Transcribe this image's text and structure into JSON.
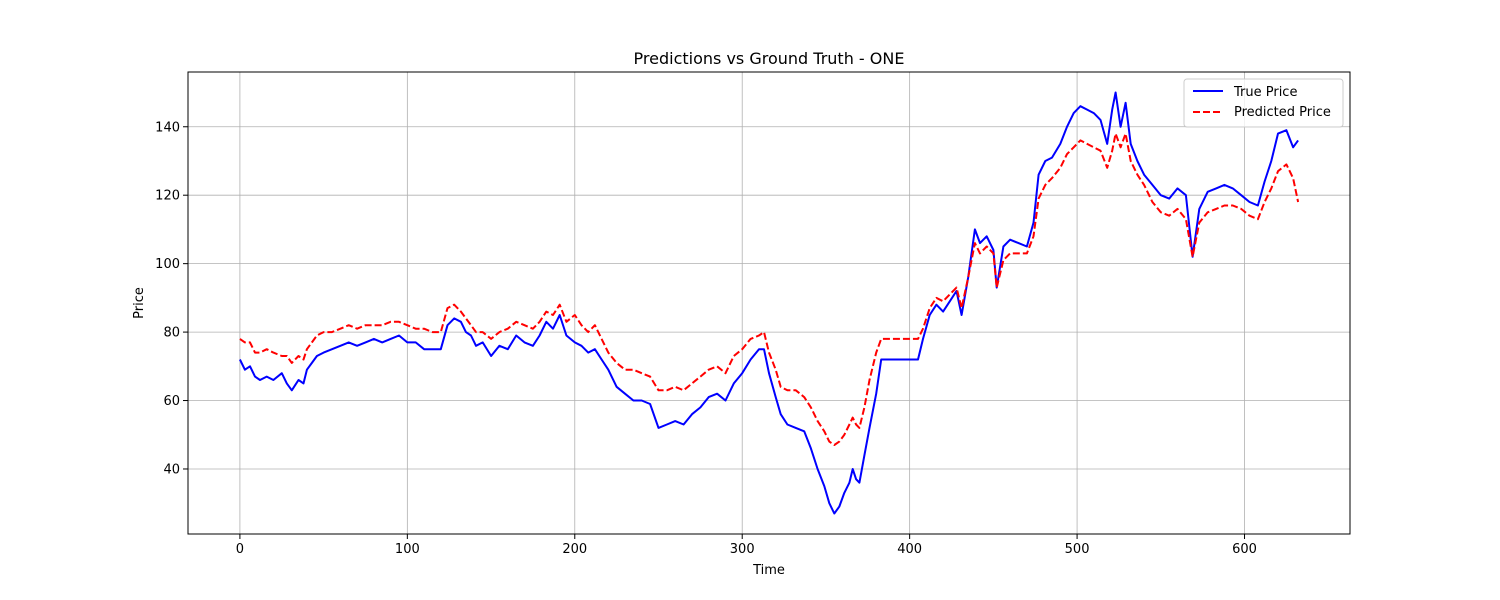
{
  "chart_data": {
    "type": "line",
    "title": "Predictions vs Ground Truth - ONE",
    "xlabel": "Time",
    "ylabel": "Price",
    "xlim": [
      -31,
      663
    ],
    "ylim": [
      21,
      156
    ],
    "xticks": [
      0,
      100,
      200,
      300,
      400,
      500,
      600
    ],
    "yticks": [
      40,
      60,
      80,
      100,
      120,
      140
    ],
    "grid": true,
    "legend_position": "top-right",
    "series": [
      {
        "name": "True Price",
        "color": "#0000ff",
        "style": "solid",
        "points": [
          [
            0,
            72
          ],
          [
            3,
            69
          ],
          [
            6,
            70
          ],
          [
            9,
            67
          ],
          [
            12,
            66
          ],
          [
            16,
            67
          ],
          [
            20,
            66
          ],
          [
            25,
            68
          ],
          [
            28,
            65
          ],
          [
            31,
            63
          ],
          [
            35,
            66
          ],
          [
            38,
            65
          ],
          [
            40,
            69
          ],
          [
            43,
            71
          ],
          [
            46,
            73
          ],
          [
            50,
            74
          ],
          [
            55,
            75
          ],
          [
            60,
            76
          ],
          [
            65,
            77
          ],
          [
            70,
            76
          ],
          [
            75,
            77
          ],
          [
            80,
            78
          ],
          [
            85,
            77
          ],
          [
            90,
            78
          ],
          [
            95,
            79
          ],
          [
            100,
            77
          ],
          [
            105,
            77
          ],
          [
            110,
            75
          ],
          [
            115,
            75
          ],
          [
            120,
            75
          ],
          [
            124,
            82
          ],
          [
            128,
            84
          ],
          [
            132,
            83
          ],
          [
            135,
            80
          ],
          [
            138,
            79
          ],
          [
            141,
            76
          ],
          [
            145,
            77
          ],
          [
            150,
            73
          ],
          [
            155,
            76
          ],
          [
            160,
            75
          ],
          [
            165,
            79
          ],
          [
            170,
            77
          ],
          [
            175,
            76
          ],
          [
            179,
            79
          ],
          [
            183,
            83
          ],
          [
            187,
            81
          ],
          [
            191,
            85
          ],
          [
            195,
            79
          ],
          [
            200,
            77
          ],
          [
            204,
            76
          ],
          [
            208,
            74
          ],
          [
            212,
            75
          ],
          [
            216,
            72
          ],
          [
            220,
            69
          ],
          [
            225,
            64
          ],
          [
            230,
            62
          ],
          [
            235,
            60
          ],
          [
            240,
            60
          ],
          [
            245,
            59
          ],
          [
            250,
            52
          ],
          [
            255,
            53
          ],
          [
            260,
            54
          ],
          [
            265,
            53
          ],
          [
            270,
            56
          ],
          [
            275,
            58
          ],
          [
            280,
            61
          ],
          [
            285,
            62
          ],
          [
            290,
            60
          ],
          [
            295,
            65
          ],
          [
            300,
            68
          ],
          [
            305,
            72
          ],
          [
            310,
            75
          ],
          [
            313,
            75
          ],
          [
            316,
            68
          ],
          [
            320,
            61
          ],
          [
            323,
            56
          ],
          [
            327,
            53
          ],
          [
            332,
            52
          ],
          [
            337,
            51
          ],
          [
            341,
            46
          ],
          [
            345,
            40
          ],
          [
            349,
            35
          ],
          [
            352,
            30
          ],
          [
            355,
            27
          ],
          [
            358,
            29
          ],
          [
            361,
            33
          ],
          [
            364,
            36
          ],
          [
            366,
            40
          ],
          [
            368,
            37
          ],
          [
            370,
            36
          ],
          [
            373,
            44
          ],
          [
            376,
            52
          ],
          [
            380,
            62
          ],
          [
            383,
            72
          ],
          [
            390,
            72
          ],
          [
            400,
            72
          ],
          [
            405,
            72
          ],
          [
            408,
            78
          ],
          [
            412,
            85
          ],
          [
            416,
            88
          ],
          [
            420,
            86
          ],
          [
            424,
            89
          ],
          [
            428,
            92
          ],
          [
            431,
            85
          ],
          [
            435,
            96
          ],
          [
            439,
            110
          ],
          [
            442,
            106
          ],
          [
            446,
            108
          ],
          [
            450,
            104
          ],
          [
            452,
            93
          ],
          [
            456,
            105
          ],
          [
            460,
            107
          ],
          [
            465,
            106
          ],
          [
            470,
            105
          ],
          [
            474,
            112
          ],
          [
            477,
            126
          ],
          [
            481,
            130
          ],
          [
            485,
            131
          ],
          [
            490,
            135
          ],
          [
            494,
            140
          ],
          [
            498,
            144
          ],
          [
            502,
            146
          ],
          [
            506,
            145
          ],
          [
            510,
            144
          ],
          [
            514,
            142
          ],
          [
            518,
            135
          ],
          [
            521,
            145
          ],
          [
            523,
            150
          ],
          [
            526,
            140
          ],
          [
            529,
            147
          ],
          [
            532,
            135
          ],
          [
            536,
            130
          ],
          [
            540,
            126
          ],
          [
            545,
            123
          ],
          [
            550,
            120
          ],
          [
            555,
            119
          ],
          [
            560,
            122
          ],
          [
            565,
            120
          ],
          [
            569,
            102
          ],
          [
            573,
            116
          ],
          [
            578,
            121
          ],
          [
            583,
            122
          ],
          [
            588,
            123
          ],
          [
            593,
            122
          ],
          [
            598,
            120
          ],
          [
            603,
            118
          ],
          [
            608,
            117
          ],
          [
            612,
            124
          ],
          [
            616,
            130
          ],
          [
            620,
            138
          ],
          [
            625,
            139
          ],
          [
            629,
            134
          ],
          [
            632,
            136
          ]
        ]
      },
      {
        "name": "Predicted Price",
        "color": "#ff0000",
        "style": "dashed",
        "points": [
          [
            0,
            78
          ],
          [
            3,
            77
          ],
          [
            6,
            77
          ],
          [
            9,
            74
          ],
          [
            12,
            74
          ],
          [
            16,
            75
          ],
          [
            20,
            74
          ],
          [
            25,
            73
          ],
          [
            28,
            73
          ],
          [
            31,
            71
          ],
          [
            35,
            73
          ],
          [
            38,
            72
          ],
          [
            40,
            75
          ],
          [
            43,
            77
          ],
          [
            46,
            79
          ],
          [
            50,
            80
          ],
          [
            55,
            80
          ],
          [
            60,
            81
          ],
          [
            65,
            82
          ],
          [
            70,
            81
          ],
          [
            75,
            82
          ],
          [
            80,
            82
          ],
          [
            85,
            82
          ],
          [
            90,
            83
          ],
          [
            95,
            83
          ],
          [
            100,
            82
          ],
          [
            105,
            81
          ],
          [
            110,
            81
          ],
          [
            115,
            80
          ],
          [
            120,
            80
          ],
          [
            124,
            87
          ],
          [
            128,
            88
          ],
          [
            132,
            86
          ],
          [
            135,
            84
          ],
          [
            138,
            82
          ],
          [
            141,
            80
          ],
          [
            145,
            80
          ],
          [
            150,
            78
          ],
          [
            155,
            80
          ],
          [
            160,
            81
          ],
          [
            165,
            83
          ],
          [
            170,
            82
          ],
          [
            175,
            81
          ],
          [
            179,
            83
          ],
          [
            183,
            86
          ],
          [
            187,
            85
          ],
          [
            191,
            88
          ],
          [
            195,
            83
          ],
          [
            200,
            85
          ],
          [
            204,
            82
          ],
          [
            208,
            80
          ],
          [
            212,
            82
          ],
          [
            216,
            78
          ],
          [
            220,
            74
          ],
          [
            225,
            71
          ],
          [
            230,
            69
          ],
          [
            235,
            69
          ],
          [
            240,
            68
          ],
          [
            245,
            67
          ],
          [
            250,
            63
          ],
          [
            255,
            63
          ],
          [
            260,
            64
          ],
          [
            265,
            63
          ],
          [
            270,
            65
          ],
          [
            275,
            67
          ],
          [
            280,
            69
          ],
          [
            285,
            70
          ],
          [
            290,
            68
          ],
          [
            295,
            73
          ],
          [
            300,
            75
          ],
          [
            305,
            78
          ],
          [
            310,
            79
          ],
          [
            313,
            80
          ],
          [
            316,
            74
          ],
          [
            320,
            69
          ],
          [
            323,
            64
          ],
          [
            327,
            63
          ],
          [
            332,
            63
          ],
          [
            337,
            61
          ],
          [
            341,
            58
          ],
          [
            345,
            54
          ],
          [
            349,
            51
          ],
          [
            352,
            48
          ],
          [
            355,
            47
          ],
          [
            358,
            48
          ],
          [
            361,
            50
          ],
          [
            364,
            53
          ],
          [
            366,
            55
          ],
          [
            368,
            53
          ],
          [
            370,
            52
          ],
          [
            373,
            58
          ],
          [
            376,
            66
          ],
          [
            380,
            74
          ],
          [
            383,
            78
          ],
          [
            390,
            78
          ],
          [
            400,
            78
          ],
          [
            405,
            78
          ],
          [
            408,
            81
          ],
          [
            412,
            87
          ],
          [
            416,
            90
          ],
          [
            420,
            89
          ],
          [
            424,
            91
          ],
          [
            428,
            93
          ],
          [
            431,
            87
          ],
          [
            435,
            96
          ],
          [
            439,
            106
          ],
          [
            442,
            103
          ],
          [
            446,
            105
          ],
          [
            450,
            103
          ],
          [
            452,
            93
          ],
          [
            456,
            101
          ],
          [
            460,
            103
          ],
          [
            465,
            103
          ],
          [
            470,
            103
          ],
          [
            474,
            108
          ],
          [
            477,
            119
          ],
          [
            481,
            123
          ],
          [
            485,
            125
          ],
          [
            490,
            128
          ],
          [
            494,
            132
          ],
          [
            498,
            134
          ],
          [
            502,
            136
          ],
          [
            506,
            135
          ],
          [
            510,
            134
          ],
          [
            514,
            133
          ],
          [
            518,
            128
          ],
          [
            521,
            133
          ],
          [
            523,
            138
          ],
          [
            526,
            134
          ],
          [
            529,
            138
          ],
          [
            532,
            130
          ],
          [
            536,
            126
          ],
          [
            540,
            123
          ],
          [
            545,
            118
          ],
          [
            550,
            115
          ],
          [
            555,
            114
          ],
          [
            560,
            116
          ],
          [
            565,
            113
          ],
          [
            569,
            102
          ],
          [
            573,
            112
          ],
          [
            578,
            115
          ],
          [
            583,
            116
          ],
          [
            588,
            117
          ],
          [
            593,
            117
          ],
          [
            598,
            116
          ],
          [
            603,
            114
          ],
          [
            608,
            113
          ],
          [
            612,
            118
          ],
          [
            616,
            122
          ],
          [
            620,
            127
          ],
          [
            625,
            129
          ],
          [
            629,
            125
          ],
          [
            632,
            118
          ]
        ]
      }
    ]
  }
}
